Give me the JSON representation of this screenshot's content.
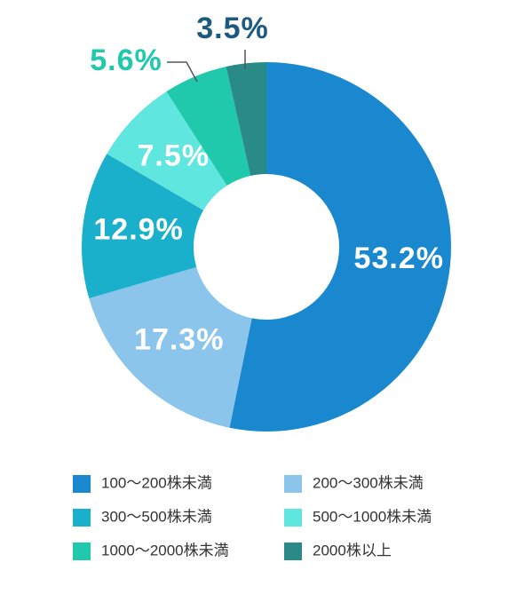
{
  "chart_data": {
    "type": "donut",
    "categories": [
      "100〜200株未満",
      "200〜300株未満",
      "300〜500株未満",
      "500〜1000株未満",
      "1000〜2000株未満",
      "2000株以上"
    ],
    "values": [
      53.2,
      17.3,
      12.9,
      7.5,
      5.6,
      3.5
    ],
    "value_labels": [
      "53.2%",
      "17.3%",
      "12.9%",
      "7.5%",
      "5.6%",
      "3.5%"
    ],
    "colors": [
      "#1a88cf",
      "#8bc5ec",
      "#1ab0cc",
      "#5ee6df",
      "#20c9ab",
      "#2a8a88"
    ]
  }
}
